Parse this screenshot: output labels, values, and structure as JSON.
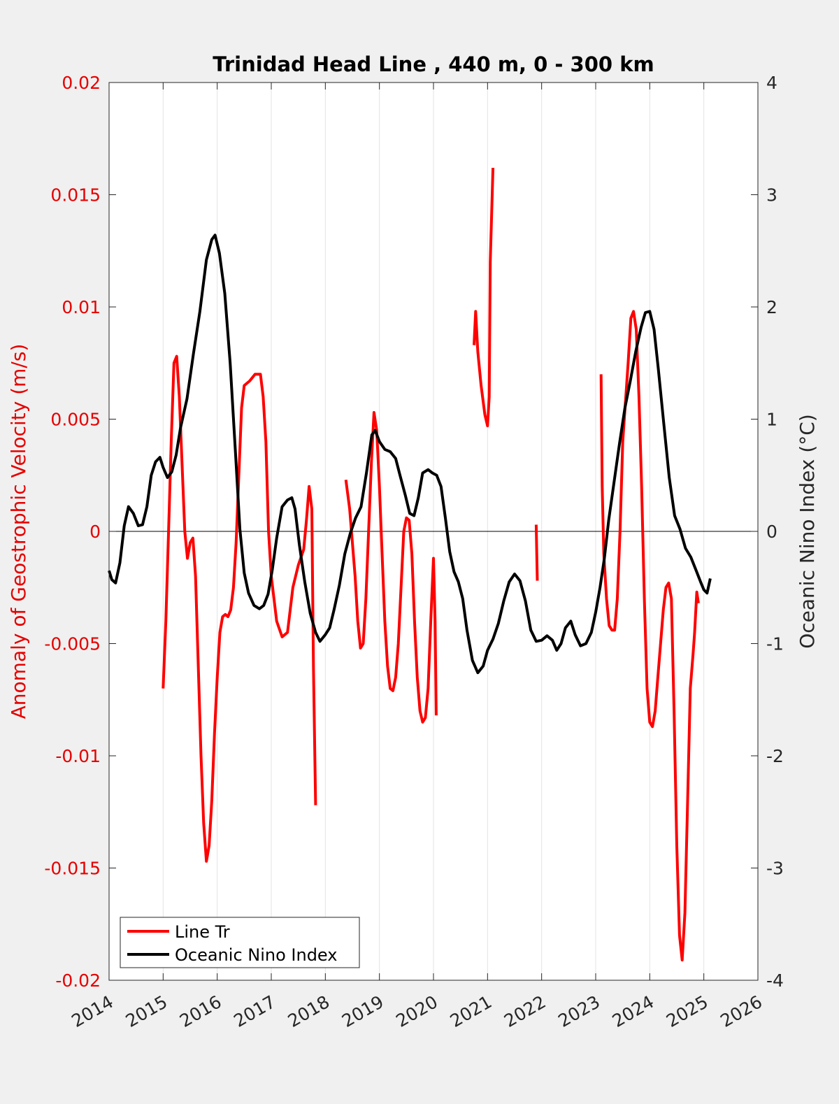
{
  "chart_data": {
    "type": "line",
    "title": "Trinidad Head Line , 440 m, 0 - 300 km",
    "xlabel": "",
    "ylabel_left": "Anomaly of Geostrophic Velocity (m/s)",
    "ylabel_right": "Oceanic Nino Index (°C)",
    "xlim": [
      2014,
      2026
    ],
    "ylim_left": [
      -0.02,
      0.02
    ],
    "ylim_right": [
      -4,
      4
    ],
    "x_ticks": [
      "2014",
      "2015",
      "2016",
      "2017",
      "2018",
      "2019",
      "2020",
      "2021",
      "2022",
      "2023",
      "2024",
      "2025",
      "2026"
    ],
    "y_ticks_left": [
      "-0.02",
      "-0.015",
      "-0.01",
      "-0.005",
      "0",
      "0.005",
      "0.01",
      "0.015",
      "0.02"
    ],
    "y_ticks_right": [
      "-4",
      "-3",
      "-2",
      "-1",
      "0",
      "1",
      "2",
      "3",
      "4"
    ],
    "grid": "vertical",
    "zero_line": true,
    "legend_position": "bottom-left",
    "colors": {
      "line_tr": "#ff0000",
      "oni": "#000000",
      "left_axis": "#e60000",
      "right_axis": "#262626"
    },
    "series": [
      {
        "name": "Line Tr",
        "axis": "left",
        "segments": [
          [
            [
              2015.0,
              -0.007
            ],
            [
              2015.05,
              -0.004
            ],
            [
              2015.1,
              0.0
            ],
            [
              2015.15,
              0.004
            ],
            [
              2015.2,
              0.0075
            ],
            [
              2015.25,
              0.0078
            ],
            [
              2015.3,
              0.006
            ],
            [
              2015.35,
              0.003
            ],
            [
              2015.4,
              0.0
            ],
            [
              2015.45,
              -0.0012
            ],
            [
              2015.5,
              -0.0005
            ],
            [
              2015.55,
              -0.0003
            ],
            [
              2015.6,
              -0.002
            ],
            [
              2015.65,
              -0.006
            ],
            [
              2015.7,
              -0.01
            ],
            [
              2015.75,
              -0.013
            ],
            [
              2015.8,
              -0.0147
            ],
            [
              2015.85,
              -0.014
            ],
            [
              2015.9,
              -0.012
            ],
            [
              2015.95,
              -0.009
            ],
            [
              2016.0,
              -0.0065
            ],
            [
              2016.05,
              -0.0045
            ],
            [
              2016.1,
              -0.0038
            ],
            [
              2016.15,
              -0.0037
            ],
            [
              2016.2,
              -0.0038
            ],
            [
              2016.25,
              -0.0035
            ],
            [
              2016.3,
              -0.0025
            ],
            [
              2016.35,
              -0.0005
            ],
            [
              2016.4,
              0.0025
            ],
            [
              2016.45,
              0.0055
            ],
            [
              2016.5,
              0.0065
            ],
            [
              2016.6,
              0.0067
            ],
            [
              2016.7,
              0.007
            ],
            [
              2016.8,
              0.007
            ],
            [
              2016.85,
              0.006
            ],
            [
              2016.9,
              0.004
            ],
            [
              2016.95,
              0.0
            ],
            [
              2017.0,
              -0.002
            ],
            [
              2017.1,
              -0.004
            ],
            [
              2017.2,
              -0.0047
            ],
            [
              2017.3,
              -0.0045
            ],
            [
              2017.4,
              -0.0025
            ],
            [
              2017.5,
              -0.0015
            ],
            [
              2017.6,
              -0.0008
            ],
            [
              2017.65,
              0.0005
            ],
            [
              2017.7,
              0.002
            ],
            [
              2017.75,
              0.001
            ],
            [
              2017.78,
              -0.006
            ],
            [
              2017.82,
              -0.0122
            ]
          ],
          [
            [
              2018.38,
              0.0023
            ],
            [
              2018.45,
              0.001
            ],
            [
              2018.55,
              -0.002
            ],
            [
              2018.6,
              -0.004
            ],
            [
              2018.65,
              -0.0052
            ],
            [
              2018.7,
              -0.005
            ],
            [
              2018.75,
              -0.003
            ],
            [
              2018.8,
              0.0
            ],
            [
              2018.85,
              0.003
            ],
            [
              2018.9,
              0.0053
            ],
            [
              2018.95,
              0.0045
            ],
            [
              2019.0,
              0.002
            ],
            [
              2019.05,
              -0.001
            ],
            [
              2019.1,
              -0.004
            ],
            [
              2019.15,
              -0.006
            ],
            [
              2019.2,
              -0.007
            ],
            [
              2019.25,
              -0.0071
            ],
            [
              2019.3,
              -0.0065
            ],
            [
              2019.35,
              -0.005
            ],
            [
              2019.4,
              -0.0025
            ],
            [
              2019.45,
              0.0
            ],
            [
              2019.5,
              0.0006
            ],
            [
              2019.55,
              0.0005
            ],
            [
              2019.6,
              -0.001
            ],
            [
              2019.65,
              -0.004
            ],
            [
              2019.7,
              -0.0065
            ],
            [
              2019.75,
              -0.008
            ],
            [
              2019.8,
              -0.0085
            ],
            [
              2019.85,
              -0.0083
            ],
            [
              2019.9,
              -0.007
            ],
            [
              2019.95,
              -0.004
            ],
            [
              2020.0,
              -0.0012
            ],
            [
              2020.03,
              -0.004
            ],
            [
              2020.05,
              -0.0082
            ]
          ],
          [
            [
              2020.75,
              0.0083
            ],
            [
              2020.78,
              0.0098
            ],
            [
              2020.82,
              0.008
            ],
            [
              2020.88,
              0.0065
            ],
            [
              2020.95,
              0.0052
            ],
            [
              2021.0,
              0.0047
            ],
            [
              2021.03,
              0.006
            ],
            [
              2021.05,
              0.012
            ],
            [
              2021.1,
              0.0162
            ]
          ],
          [
            [
              2021.9,
              0.0003
            ],
            [
              2021.92,
              -0.0022
            ]
          ],
          [
            [
              2023.1,
              0.007
            ],
            [
              2023.12,
              0.002
            ],
            [
              2023.15,
              -0.001
            ],
            [
              2023.2,
              -0.003
            ],
            [
              2023.25,
              -0.0042
            ],
            [
              2023.3,
              -0.0044
            ],
            [
              2023.35,
              -0.0044
            ],
            [
              2023.4,
              -0.003
            ],
            [
              2023.45,
              0.0
            ],
            [
              2023.5,
              0.004
            ],
            [
              2023.6,
              0.0075
            ],
            [
              2023.65,
              0.0095
            ],
            [
              2023.7,
              0.0098
            ],
            [
              2023.75,
              0.009
            ],
            [
              2023.8,
              0.006
            ],
            [
              2023.85,
              0.002
            ],
            [
              2023.9,
              -0.003
            ],
            [
              2023.95,
              -0.007
            ],
            [
              2024.0,
              -0.0085
            ],
            [
              2024.05,
              -0.0087
            ],
            [
              2024.1,
              -0.008
            ],
            [
              2024.15,
              -0.0065
            ],
            [
              2024.2,
              -0.005
            ],
            [
              2024.25,
              -0.0035
            ],
            [
              2024.3,
              -0.0025
            ],
            [
              2024.35,
              -0.0023
            ],
            [
              2024.4,
              -0.003
            ],
            [
              2024.45,
              -0.008
            ],
            [
              2024.5,
              -0.014
            ],
            [
              2024.55,
              -0.018
            ],
            [
              2024.6,
              -0.0191
            ],
            [
              2024.65,
              -0.017
            ],
            [
              2024.7,
              -0.012
            ],
            [
              2024.75,
              -0.007
            ],
            [
              2024.8,
              -0.0055
            ],
            [
              2024.83,
              -0.0045
            ],
            [
              2024.87,
              -0.0027
            ],
            [
              2024.9,
              -0.0032
            ]
          ]
        ]
      },
      {
        "name": "Oceanic Nino Index",
        "axis": "right",
        "points": [
          [
            2014.0,
            -0.35
          ],
          [
            2014.05,
            -0.43
          ],
          [
            2014.12,
            -0.46
          ],
          [
            2014.2,
            -0.28
          ],
          [
            2014.28,
            0.05
          ],
          [
            2014.36,
            0.22
          ],
          [
            2014.45,
            0.16
          ],
          [
            2014.54,
            0.05
          ],
          [
            2014.62,
            0.06
          ],
          [
            2014.7,
            0.22
          ],
          [
            2014.78,
            0.5
          ],
          [
            2014.86,
            0.62
          ],
          [
            2014.94,
            0.66
          ],
          [
            2015.0,
            0.57
          ],
          [
            2015.08,
            0.48
          ],
          [
            2015.16,
            0.53
          ],
          [
            2015.24,
            0.68
          ],
          [
            2015.32,
            0.92
          ],
          [
            2015.44,
            1.18
          ],
          [
            2015.56,
            1.58
          ],
          [
            2015.68,
            1.96
          ],
          [
            2015.8,
            2.42
          ],
          [
            2015.9,
            2.6
          ],
          [
            2015.96,
            2.64
          ],
          [
            2016.04,
            2.48
          ],
          [
            2016.14,
            2.12
          ],
          [
            2016.24,
            1.5
          ],
          [
            2016.34,
            0.68
          ],
          [
            2016.42,
            0.02
          ],
          [
            2016.5,
            -0.37
          ],
          [
            2016.58,
            -0.55
          ],
          [
            2016.68,
            -0.66
          ],
          [
            2016.78,
            -0.69
          ],
          [
            2016.86,
            -0.66
          ],
          [
            2016.94,
            -0.56
          ],
          [
            2017.02,
            -0.34
          ],
          [
            2017.1,
            -0.06
          ],
          [
            2017.2,
            0.22
          ],
          [
            2017.3,
            0.28
          ],
          [
            2017.38,
            0.3
          ],
          [
            2017.44,
            0.2
          ],
          [
            2017.52,
            -0.12
          ],
          [
            2017.62,
            -0.45
          ],
          [
            2017.72,
            -0.73
          ],
          [
            2017.82,
            -0.9
          ],
          [
            2017.9,
            -0.98
          ],
          [
            2018.0,
            -0.92
          ],
          [
            2018.08,
            -0.86
          ],
          [
            2018.16,
            -0.7
          ],
          [
            2018.26,
            -0.48
          ],
          [
            2018.36,
            -0.2
          ],
          [
            2018.46,
            -0.02
          ],
          [
            2018.56,
            0.12
          ],
          [
            2018.66,
            0.22
          ],
          [
            2018.76,
            0.52
          ],
          [
            2018.86,
            0.86
          ],
          [
            2018.92,
            0.9
          ],
          [
            2019.0,
            0.8
          ],
          [
            2019.1,
            0.73
          ],
          [
            2019.2,
            0.71
          ],
          [
            2019.3,
            0.65
          ],
          [
            2019.38,
            0.5
          ],
          [
            2019.48,
            0.32
          ],
          [
            2019.56,
            0.16
          ],
          [
            2019.64,
            0.14
          ],
          [
            2019.72,
            0.3
          ],
          [
            2019.8,
            0.52
          ],
          [
            2019.9,
            0.55
          ],
          [
            2019.98,
            0.52
          ],
          [
            2020.06,
            0.5
          ],
          [
            2020.14,
            0.4
          ],
          [
            2020.22,
            0.12
          ],
          [
            2020.3,
            -0.18
          ],
          [
            2020.38,
            -0.36
          ],
          [
            2020.46,
            -0.45
          ],
          [
            2020.54,
            -0.6
          ],
          [
            2020.62,
            -0.88
          ],
          [
            2020.72,
            -1.15
          ],
          [
            2020.82,
            -1.26
          ],
          [
            2020.92,
            -1.2
          ],
          [
            2021.0,
            -1.06
          ],
          [
            2021.1,
            -0.96
          ],
          [
            2021.2,
            -0.82
          ],
          [
            2021.3,
            -0.62
          ],
          [
            2021.4,
            -0.45
          ],
          [
            2021.5,
            -0.38
          ],
          [
            2021.6,
            -0.44
          ],
          [
            2021.7,
            -0.62
          ],
          [
            2021.8,
            -0.88
          ],
          [
            2021.9,
            -0.98
          ],
          [
            2022.0,
            -0.97
          ],
          [
            2022.1,
            -0.93
          ],
          [
            2022.2,
            -0.97
          ],
          [
            2022.28,
            -1.06
          ],
          [
            2022.36,
            -1.0
          ],
          [
            2022.44,
            -0.86
          ],
          [
            2022.54,
            -0.8
          ],
          [
            2022.62,
            -0.92
          ],
          [
            2022.72,
            -1.02
          ],
          [
            2022.82,
            -1.0
          ],
          [
            2022.92,
            -0.9
          ],
          [
            2023.0,
            -0.72
          ],
          [
            2023.08,
            -0.5
          ],
          [
            2023.16,
            -0.24
          ],
          [
            2023.24,
            0.1
          ],
          [
            2023.34,
            0.44
          ],
          [
            2023.44,
            0.78
          ],
          [
            2023.54,
            1.1
          ],
          [
            2023.64,
            1.34
          ],
          [
            2023.74,
            1.6
          ],
          [
            2023.84,
            1.82
          ],
          [
            2023.92,
            1.95
          ],
          [
            2024.0,
            1.96
          ],
          [
            2024.08,
            1.8
          ],
          [
            2024.16,
            1.44
          ],
          [
            2024.26,
            0.96
          ],
          [
            2024.36,
            0.48
          ],
          [
            2024.46,
            0.14
          ],
          [
            2024.56,
            0.02
          ],
          [
            2024.66,
            -0.15
          ],
          [
            2024.76,
            -0.23
          ],
          [
            2024.86,
            -0.35
          ],
          [
            2024.94,
            -0.45
          ],
          [
            2025.0,
            -0.52
          ],
          [
            2025.06,
            -0.55
          ],
          [
            2025.12,
            -0.42
          ]
        ]
      }
    ]
  },
  "legend": {
    "items": [
      {
        "label": "Line Tr",
        "color": "#ff0000"
      },
      {
        "label": "Oceanic Nino Index",
        "color": "#000000"
      }
    ]
  }
}
